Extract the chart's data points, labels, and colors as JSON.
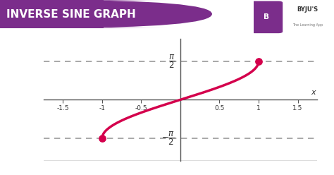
{
  "title": "INVERSE SINE GRAPH",
  "title_bg_color": "#7b2d8b",
  "title_text_color": "#ffffff",
  "curve_color": "#d4004c",
  "curve_linewidth": 2.5,
  "endpoint_color": "#d4004c",
  "endpoint_size": 45,
  "xlim": [
    -1.75,
    1.75
  ],
  "ylim": [
    -2.5,
    2.5
  ],
  "dashed_y_pos": 1.5707963267948966,
  "dashed_y_neg": -1.5707963267948966,
  "xlabel": "x",
  "background_color": "#ffffff",
  "spine_color": "#555555",
  "tick_color": "#333333",
  "dashed_color": "#999999",
  "dashed_linewidth": 1.2,
  "bottom_line_color": "#555555"
}
